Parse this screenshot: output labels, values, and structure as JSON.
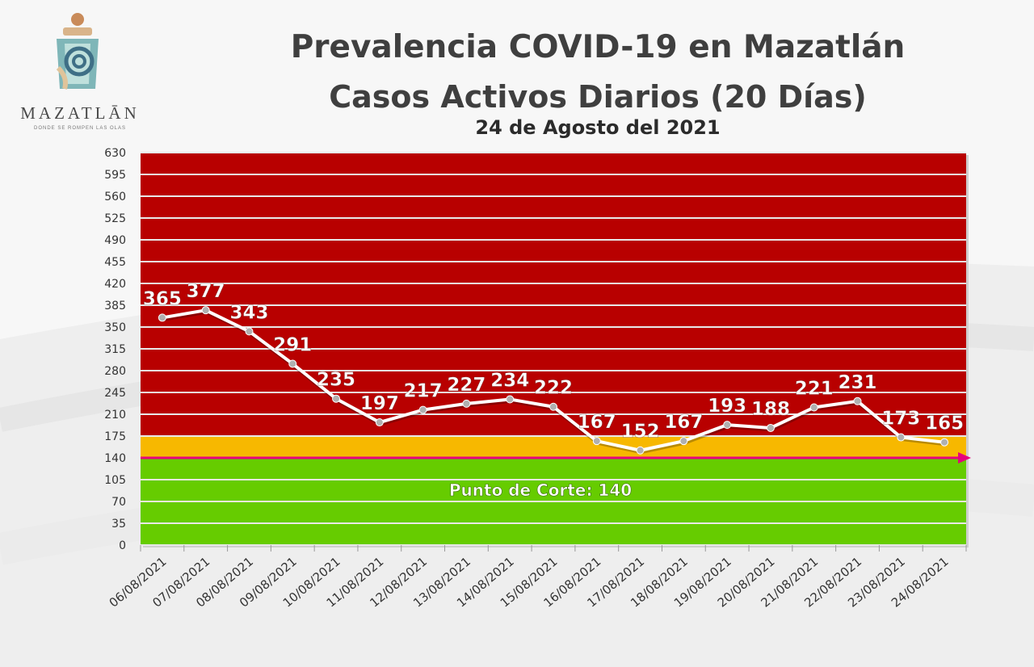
{
  "logo": {
    "name": "MAZATLĀN",
    "tagline": "DONDE SE ROMPEN LAS OLAS"
  },
  "title": "Prevalencia COVID-19 en Mazatlán",
  "subtitle": "Casos Activos Diarios (20 Días)",
  "date": "24 de Agosto del 2021",
  "colors": {
    "red_zone": "#b80000",
    "orange_zone": "#f7b800",
    "green_zone": "#66cc00",
    "cutoff_line": "#e6007e",
    "series": "#ffffff",
    "marker": "#b0b0b0"
  },
  "chart_data": {
    "type": "line",
    "title": "Prevalencia COVID-19 en Mazatlán",
    "categories": [
      "06/08/2021",
      "07/08/2021",
      "08/08/2021",
      "09/08/2021",
      "10/08/2021",
      "11/08/2021",
      "12/08/2021",
      "13/08/2021",
      "14/08/2021",
      "15/08/2021",
      "16/08/2021",
      "17/08/2021",
      "18/08/2021",
      "19/08/2021",
      "20/08/2021",
      "21/08/2021",
      "22/08/2021",
      "23/08/2021",
      "24/08/2021"
    ],
    "series": [
      {
        "values": [
          365,
          377,
          343,
          291,
          235,
          197,
          217,
          227,
          234,
          222,
          167,
          152,
          167,
          193,
          188,
          221,
          231,
          173,
          165
        ]
      }
    ],
    "ylim": [
      0,
      630
    ],
    "yticks": [
      0,
      35,
      70,
      105,
      140,
      175,
      210,
      245,
      280,
      315,
      350,
      385,
      420,
      455,
      490,
      525,
      560,
      595,
      630
    ],
    "grid": true,
    "zones": [
      {
        "from": 0,
        "to": 140,
        "color": "green"
      },
      {
        "from": 140,
        "to": 175,
        "color": "orange"
      },
      {
        "from": 175,
        "to": 630,
        "color": "red"
      }
    ],
    "cutoff": {
      "value": 140,
      "label": "Punto de Corte: 140"
    }
  }
}
